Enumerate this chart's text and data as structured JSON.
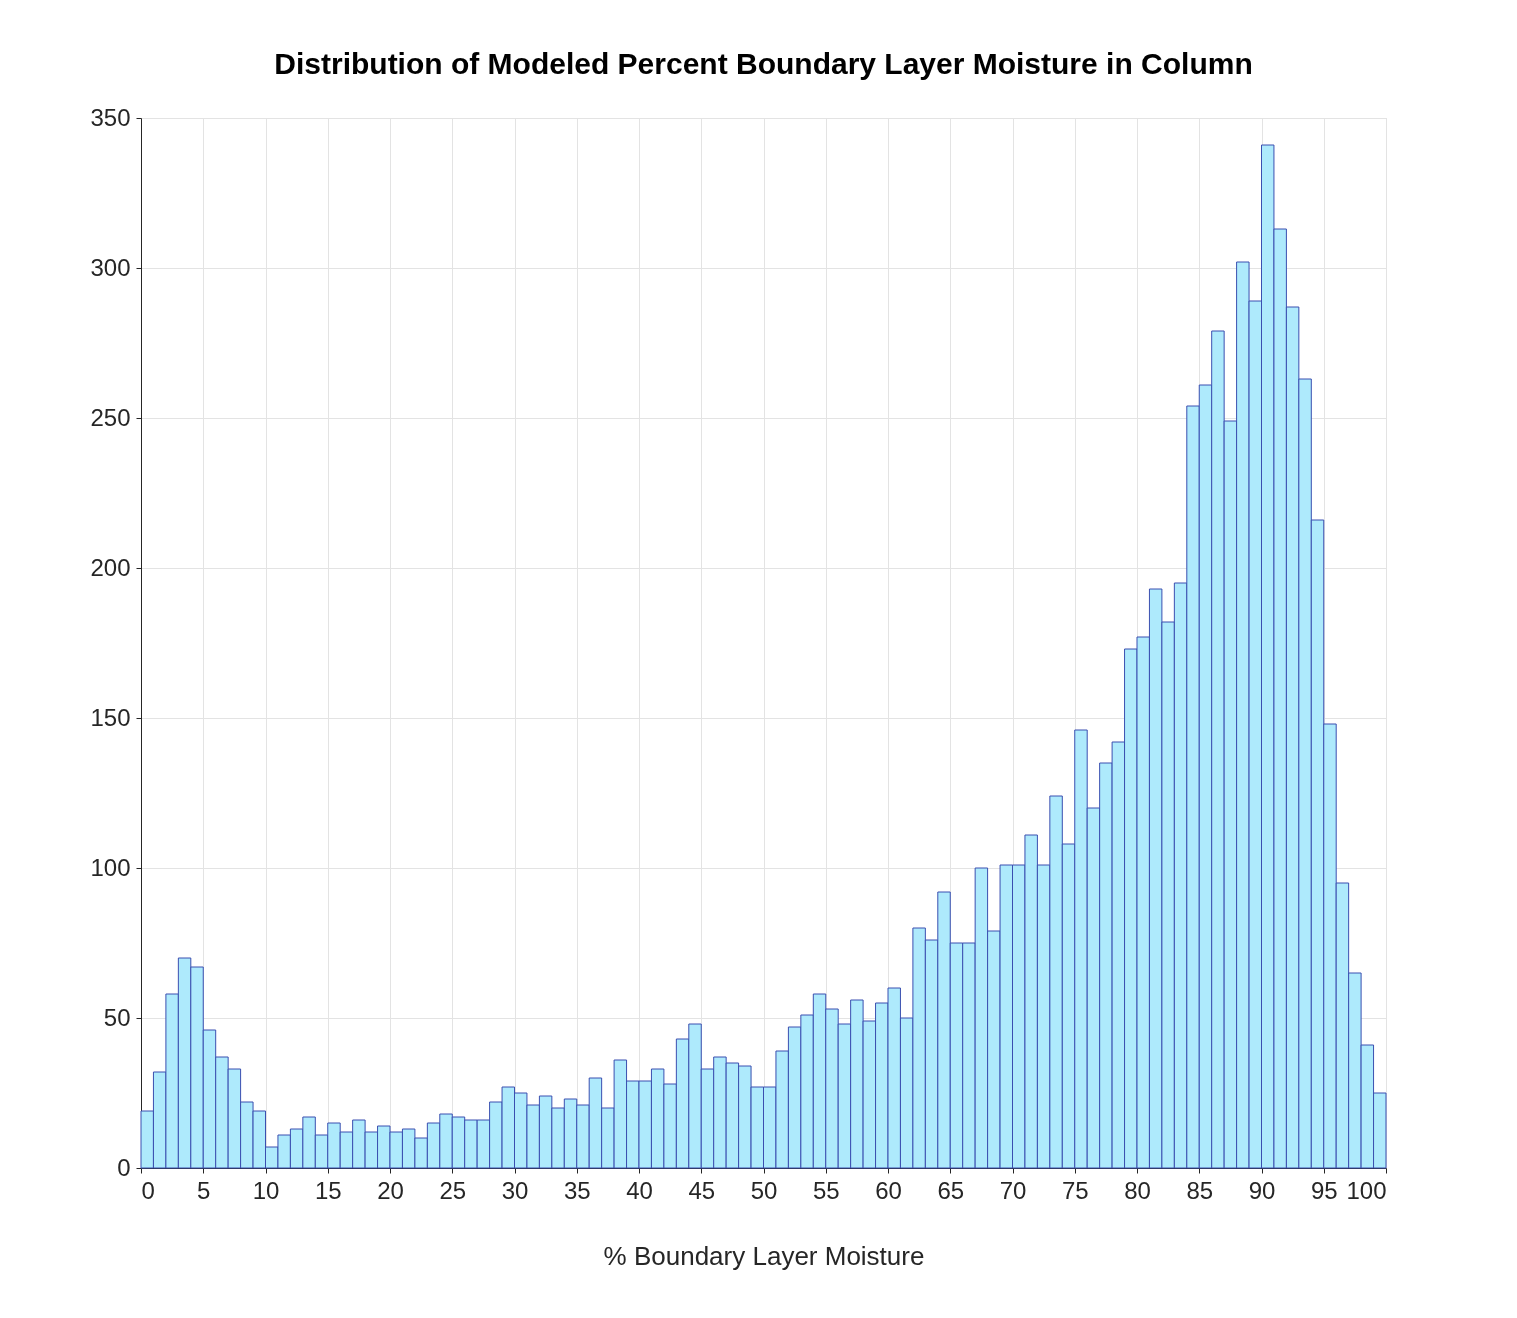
{
  "chart_data": {
    "type": "histogram",
    "title": "Distribution of Modeled Percent Boundary Layer Moisture in Column",
    "xlabel": "% Boundary Layer Moisture",
    "bins": [
      0,
      1,
      2,
      3,
      4,
      5,
      6,
      7,
      8,
      9,
      10,
      11,
      12,
      13,
      14,
      15,
      16,
      17,
      18,
      19,
      20,
      21,
      22,
      23,
      24,
      25,
      26,
      27,
      28,
      29,
      30,
      31,
      32,
      33,
      34,
      35,
      36,
      37,
      38,
      39,
      40,
      41,
      42,
      43,
      44,
      45,
      46,
      47,
      48,
      49,
      50,
      51,
      52,
      53,
      54,
      55,
      56,
      57,
      58,
      59,
      60,
      61,
      62,
      63,
      64,
      65,
      66,
      67,
      68,
      69,
      70,
      71,
      72,
      73,
      74,
      75,
      76,
      77,
      78,
      79,
      80,
      81,
      82,
      83,
      84,
      85,
      86,
      87,
      88,
      89,
      90,
      91,
      92,
      93,
      94,
      95,
      96,
      97,
      98,
      99,
      100
    ],
    "values": [
      19,
      32,
      58,
      70,
      67,
      46,
      37,
      33,
      22,
      19,
      7,
      11,
      13,
      17,
      11,
      15,
      12,
      16,
      12,
      14,
      12,
      13,
      10,
      15,
      18,
      17,
      16,
      16,
      22,
      27,
      25,
      21,
      24,
      20,
      23,
      21,
      30,
      20,
      36,
      29,
      29,
      33,
      28,
      43,
      48,
      33,
      37,
      35,
      34,
      27,
      27,
      39,
      47,
      51,
      58,
      53,
      48,
      56,
      49,
      55,
      60,
      50,
      80,
      76,
      92,
      75,
      75,
      100,
      79,
      101,
      101,
      111,
      101,
      124,
      108,
      146,
      120,
      135,
      142,
      173,
      177,
      193,
      182,
      195,
      254,
      261,
      279,
      249,
      302,
      289,
      341,
      313,
      287,
      263,
      216,
      148,
      95,
      65,
      41,
      25
    ],
    "color": "#aeeafc",
    "xlim": [
      0,
      100
    ],
    "xticks": [
      0,
      5,
      10,
      15,
      20,
      25,
      30,
      35,
      40,
      45,
      50,
      55,
      60,
      65,
      70,
      75,
      80,
      85,
      90,
      95,
      100
    ],
    "ylim": [
      0,
      350
    ],
    "yticks": [
      0,
      50,
      100,
      150,
      200,
      250,
      300,
      350
    ],
    "grid": true
  }
}
